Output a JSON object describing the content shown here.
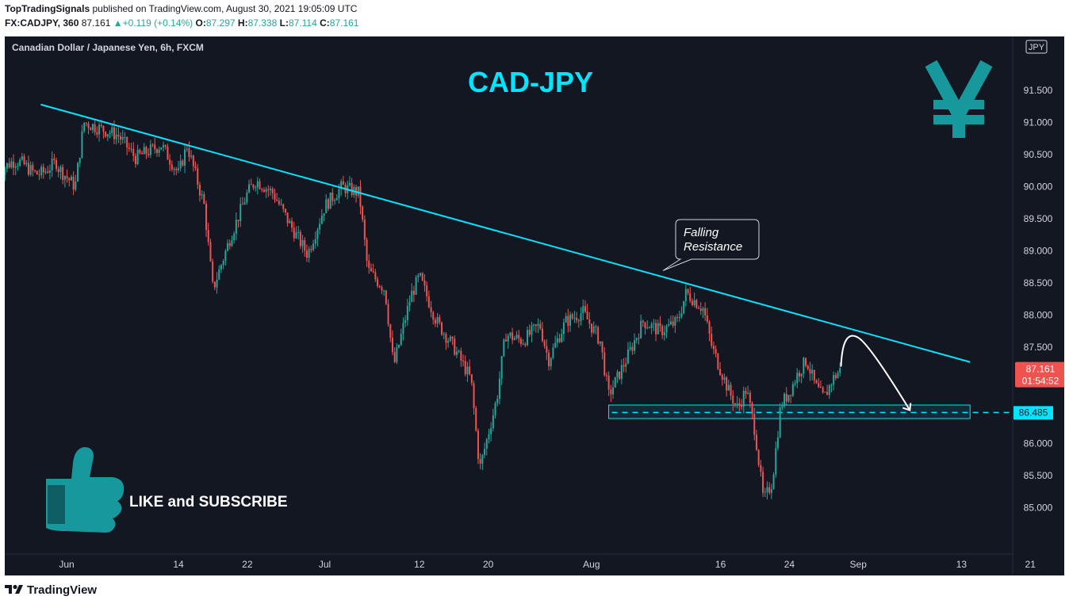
{
  "header": {
    "publisher": "TopTradingSignals",
    "published_text": "published on TradingView.com, August 30, 2021 19:05:09 UTC",
    "symbol": "FX:CADJPY, 360",
    "last": "87.161",
    "change": "+0.119 (+0.14%)",
    "open_label": "O:",
    "open": "87.297",
    "high_label": "H:",
    "high": "87.338",
    "low_label": "L:",
    "low": "87.114",
    "close_label": "C:",
    "close": "87.161"
  },
  "chart_data": {
    "type": "candlestick",
    "title": "Canadian Dollar / Japanese Yen, 6h, FXCM",
    "currency_label": "JPY",
    "headline": "CAD-JPY",
    "x_ticks": [
      "Jun",
      "14",
      "22",
      "Jul",
      "12",
      "20",
      "Aug",
      "16",
      "24",
      "Sep",
      "13",
      "21"
    ],
    "y_ticks": [
      "91.500",
      "91.000",
      "90.500",
      "90.000",
      "89.500",
      "89.000",
      "88.500",
      "88.000",
      "87.500",
      "87.000",
      "86.500",
      "86.000",
      "85.500",
      "85.000"
    ],
    "y_values": [
      91.5,
      91.0,
      90.5,
      90.0,
      89.5,
      89.0,
      88.5,
      88.0,
      87.5,
      87.0,
      86.5,
      86.0,
      85.5,
      85.0
    ],
    "ylim": [
      84.65,
      91.92
    ],
    "price_anchors": [
      [
        "2021-05-31",
        90.3
      ],
      [
        "2021-06-02",
        90.0
      ],
      [
        "2021-06-03",
        91.0
      ],
      [
        "2021-06-07",
        90.8
      ],
      [
        "2021-06-09",
        90.45
      ],
      [
        "2021-06-12",
        90.65
      ],
      [
        "2021-06-14",
        90.2
      ],
      [
        "2021-06-15",
        90.65
      ],
      [
        "2021-06-17",
        89.7
      ],
      [
        "2021-06-18",
        88.4
      ],
      [
        "2021-06-20",
        89.2
      ],
      [
        "2021-06-22",
        89.9
      ],
      [
        "2021-06-23",
        90.1
      ],
      [
        "2021-06-25",
        89.9
      ],
      [
        "2021-06-27",
        89.4
      ],
      [
        "2021-06-29",
        88.95
      ],
      [
        "2021-07-01",
        89.7
      ],
      [
        "2021-07-03",
        90.0
      ],
      [
        "2021-07-05",
        89.9
      ],
      [
        "2021-07-06",
        88.7
      ],
      [
        "2021-07-08",
        88.4
      ],
      [
        "2021-07-09",
        87.2
      ],
      [
        "2021-07-11",
        88.3
      ],
      [
        "2021-07-12",
        88.6
      ],
      [
        "2021-07-14",
        87.9
      ],
      [
        "2021-07-16",
        87.5
      ],
      [
        "2021-07-18",
        87.0
      ],
      [
        "2021-07-19",
        85.6
      ],
      [
        "2021-07-21",
        86.7
      ],
      [
        "2021-07-22",
        87.7
      ],
      [
        "2021-07-24",
        87.6
      ],
      [
        "2021-07-26",
        87.85
      ],
      [
        "2021-07-27",
        87.3
      ],
      [
        "2021-07-29",
        87.9
      ],
      [
        "2021-07-31",
        88.05
      ],
      [
        "2021-08-02",
        87.6
      ],
      [
        "2021-08-03",
        86.75
      ],
      [
        "2021-08-05",
        87.3
      ],
      [
        "2021-08-07",
        87.9
      ],
      [
        "2021-08-09",
        87.75
      ],
      [
        "2021-08-11",
        87.9
      ],
      [
        "2021-08-12",
        88.35
      ],
      [
        "2021-08-14",
        88.1
      ],
      [
        "2021-08-15",
        87.5
      ],
      [
        "2021-08-17",
        86.8
      ],
      [
        "2021-08-18",
        86.55
      ],
      [
        "2021-08-19",
        86.85
      ],
      [
        "2021-08-20",
        86.2
      ],
      [
        "2021-08-21",
        85.1
      ],
      [
        "2021-08-22",
        85.4
      ],
      [
        "2021-08-23",
        86.6
      ],
      [
        "2021-08-24",
        86.8
      ],
      [
        "2021-08-25",
        87.1
      ],
      [
        "2021-08-26",
        87.3
      ],
      [
        "2021-08-27",
        86.9
      ],
      [
        "2021-08-28",
        86.7
      ],
      [
        "2021-08-29",
        87.0
      ],
      [
        "2021-08-30",
        87.16
      ]
    ],
    "resistance_line": {
      "from": [
        "2021-05-29",
        91.28
      ],
      "to": [
        "2021-09-14",
        87.27
      ],
      "label": "Falling Resistance",
      "label_lines": [
        "Falling",
        "Resistance"
      ]
    },
    "support_zone": {
      "from": "2021-08-03",
      "to": "2021-09-14",
      "low": 86.39,
      "high": 86.6,
      "level": 86.485,
      "level_label": "86.485"
    },
    "projection": {
      "from": [
        "2021-08-30",
        87.2
      ],
      "peak": [
        "2021-09-01",
        87.65
      ],
      "to": [
        "2021-09-07",
        86.52
      ]
    },
    "last_price": {
      "value": 87.161,
      "label": "87.161",
      "countdown": "01:54:52"
    },
    "annotation": "LIKE and SUBSCRIBE",
    "colors": {
      "up": "#26a69a",
      "down": "#ef5350",
      "resistance": "#00e5ff",
      "headline": "#00e5ff",
      "icon": "#16989c",
      "background": "#131722"
    }
  },
  "footer": {
    "brand": "TradingView"
  }
}
